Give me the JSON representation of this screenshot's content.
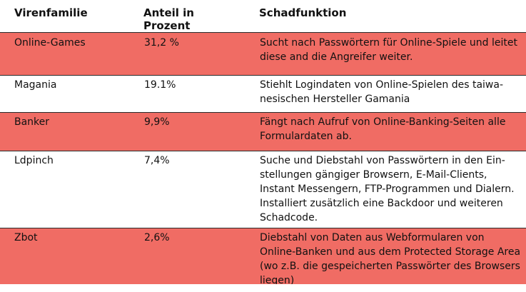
{
  "headers": {
    "family": "Virenfamilie",
    "share": "Anteil in Prozent",
    "function": "Schadfunktion"
  },
  "rows": [
    {
      "name": "Online-Games",
      "share": "31,2 %",
      "description": "Sucht nach Passwörtern für Online-Spiele und leitet diese and die Angreifer weiter."
    },
    {
      "name": "Magania",
      "share": "19.1%",
      "description": "Stiehlt Logindaten von Online-Spielen des taiwa-nesischen Hersteller Gamania"
    },
    {
      "name": "Banker",
      "share": "9,9%",
      "description": "Fängt nach Aufruf von Online-Banking-Seiten alle Formulardaten ab."
    },
    {
      "name": "Ldpinch",
      "share": "7,4%",
      "description": "Suche und Diebstahl von Passwörtern in den Ein-stellungen gängiger Browsern, E-Mail-Clients, Instant Messengern, FTP-Programmen und Dialern. Installiert zusätzlich eine Backdoor und weiteren Schadcode."
    },
    {
      "name": "Zbot",
      "share": "2,6%",
      "description": "Diebstahl von Daten aus Webformularen von Online-Banken und aus dem Protected Storage Area (wo z.B. die gespeicherten Passwörter des Browsers liegen)"
    }
  ],
  "colors": {
    "highlight": "#f06c64",
    "background": "#ffffff",
    "text": "#111111"
  }
}
